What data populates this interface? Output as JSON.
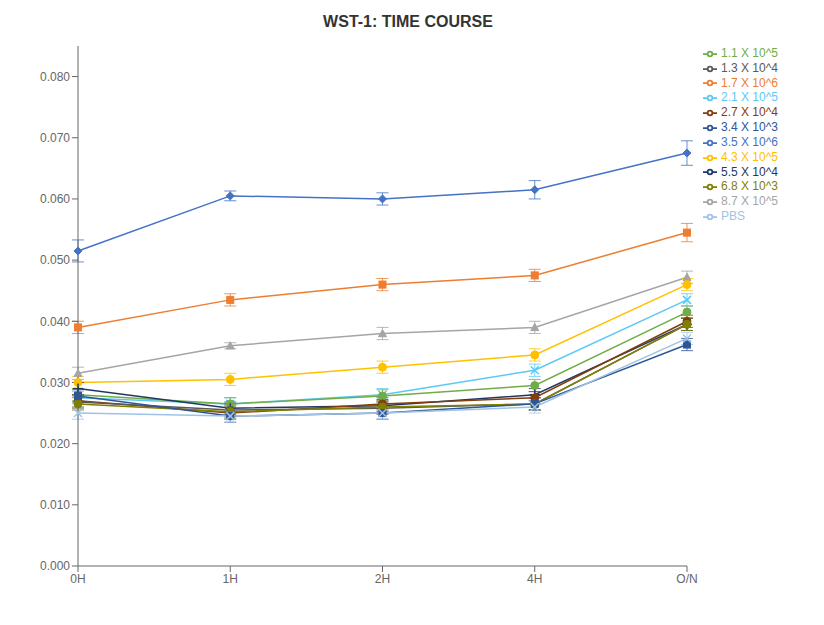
{
  "chart_data": {
    "type": "line",
    "title": "WST-1: TIME COURSE",
    "categories": [
      "0H",
      "1H",
      "2H",
      "4H",
      "O/N"
    ],
    "ylim": [
      0.0,
      0.085
    ],
    "yticks": [
      {
        "value": 0.0,
        "label": "0.000"
      },
      {
        "value": 0.01,
        "label": "0.010"
      },
      {
        "value": 0.02,
        "label": "0.020"
      },
      {
        "value": 0.03,
        "label": "0.030"
      },
      {
        "value": 0.04,
        "label": "0.040"
      },
      {
        "value": 0.05,
        "label": "0.050"
      },
      {
        "value": 0.06,
        "label": "0.060"
      },
      {
        "value": 0.07,
        "label": "0.070"
      },
      {
        "value": 0.08,
        "label": "0.080"
      }
    ],
    "grid": false,
    "legend": "right",
    "series": [
      {
        "name": "3.5 X 10^6",
        "color": "#4472C4",
        "marker": "diamond",
        "values": [
          0.0515,
          0.0605,
          0.06,
          0.0615,
          0.0675
        ],
        "errors": [
          0.0018,
          0.0008,
          0.001,
          0.0015,
          0.002
        ]
      },
      {
        "name": "1.7 X 10^6",
        "color": "#ED7D31",
        "marker": "square",
        "values": [
          0.039,
          0.0435,
          0.046,
          0.0475,
          0.0545
        ],
        "errors": [
          0.001,
          0.001,
          0.001,
          0.001,
          0.0015
        ]
      },
      {
        "name": "8.7 X 10^5",
        "color": "#A5A5A5",
        "marker": "triangle",
        "values": [
          0.0315,
          0.036,
          0.038,
          0.039,
          0.0472
        ],
        "errors": [
          0.001,
          0.0005,
          0.001,
          0.001,
          0.001
        ]
      },
      {
        "name": "4.3 X 10^5",
        "color": "#FFC000",
        "marker": "circle",
        "values": [
          0.03,
          0.0305,
          0.0325,
          0.0345,
          0.046
        ],
        "errors": [
          0.001,
          0.001,
          0.001,
          0.001,
          0.001
        ]
      },
      {
        "name": "2.1 X 10^5",
        "color": "#5BC8F5",
        "marker": "x",
        "values": [
          0.0275,
          0.0265,
          0.028,
          0.032,
          0.0435
        ],
        "errors": [
          0.001,
          0.001,
          0.001,
          0.001,
          0.001
        ]
      },
      {
        "name": "1.1 X 10^5",
        "color": "#70AD47",
        "marker": "circle",
        "values": [
          0.028,
          0.0265,
          0.0278,
          0.0295,
          0.0415
        ],
        "errors": [
          0.001,
          0.001,
          0.001,
          0.001,
          0.001
        ]
      },
      {
        "name": "5.5 X 10^4",
        "color": "#1F3864",
        "marker": "plus",
        "values": [
          0.029,
          0.0258,
          0.0262,
          0.028,
          0.0395
        ],
        "errors": [
          0.001,
          0.001,
          0.001,
          0.001,
          0.001
        ]
      },
      {
        "name": "2.7 X 10^4",
        "color": "#843C0C",
        "marker": "circle",
        "values": [
          0.027,
          0.025,
          0.0265,
          0.0275,
          0.04
        ],
        "errors": [
          0.001,
          0.001,
          0.001,
          0.001,
          0.001
        ]
      },
      {
        "name": "1.3 X 10^4",
        "color": "#595959",
        "marker": "circle",
        "values": [
          0.0268,
          0.0255,
          0.0258,
          0.0265,
          0.0395
        ],
        "errors": [
          0.001,
          0.001,
          0.001,
          0.001,
          0.001
        ]
      },
      {
        "name": "6.8 X 10^3",
        "color": "#7F7F00",
        "marker": "circle",
        "values": [
          0.0265,
          0.0252,
          0.026,
          0.0265,
          0.0395
        ],
        "errors": [
          0.001,
          0.001,
          0.001,
          0.001,
          0.001
        ]
      },
      {
        "name": "3.4 X 10^3",
        "color": "#2F5597",
        "marker": "square",
        "values": [
          0.0278,
          0.0245,
          0.025,
          0.0265,
          0.0362
        ],
        "errors": [
          0.001,
          0.001,
          0.001,
          0.001,
          0.001
        ]
      },
      {
        "name": "PBS",
        "color": "#9DC3E6",
        "marker": "x",
        "values": [
          0.025,
          0.0245,
          0.025,
          0.026,
          0.0372
        ],
        "errors": [
          0.001,
          0.001,
          0.001,
          0.001,
          0.001
        ]
      }
    ]
  }
}
